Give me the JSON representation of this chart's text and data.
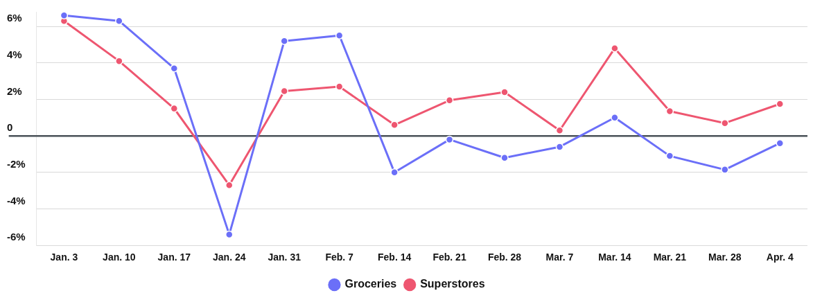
{
  "chart_data": {
    "type": "line",
    "categories": [
      "Jan. 3",
      "Jan. 10",
      "Jan. 17",
      "Jan. 24",
      "Jan. 31",
      "Feb. 7",
      "Feb. 14",
      "Feb. 21",
      "Feb. 28",
      "Mar. 7",
      "Mar. 14",
      "Mar. 21",
      "Mar. 28",
      "Apr. 4"
    ],
    "series": [
      {
        "name": "Groceries",
        "color": "#6b6ff8",
        "values": [
          6.6,
          6.3,
          3.7,
          -5.4,
          5.2,
          5.5,
          -2.0,
          -0.2,
          -1.2,
          -0.6,
          1.0,
          -1.1,
          -1.85,
          -0.4
        ]
      },
      {
        "name": "Superstores",
        "color": "#ee5670",
        "values": [
          6.3,
          4.1,
          1.5,
          -2.7,
          2.45,
          2.7,
          0.6,
          1.95,
          2.4,
          0.3,
          4.8,
          1.35,
          0.7,
          1.75
        ]
      }
    ],
    "ylim": [
      -6,
      6.8
    ],
    "yticks": [
      {
        "value": -6,
        "label": "-6%"
      },
      {
        "value": -4,
        "label": "-4%"
      },
      {
        "value": -2,
        "label": "-2%"
      },
      {
        "value": 0,
        "label": "0"
      },
      {
        "value": 2,
        "label": "2%"
      },
      {
        "value": 4,
        "label": "4%"
      },
      {
        "value": 6,
        "label": "6%"
      }
    ],
    "ref_lines": [
      {
        "axis": "y",
        "value": 0,
        "label": null,
        "color": "#4a5258"
      }
    ],
    "grid": "y",
    "legend": "bottom",
    "marker": "circle",
    "line_style": "solid"
  }
}
